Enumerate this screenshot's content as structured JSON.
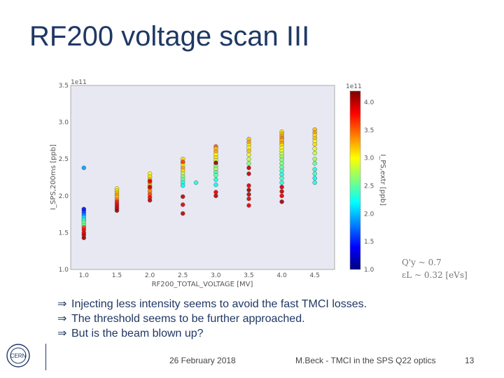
{
  "title": "RF200 voltage scan III",
  "colors": {
    "title": "#1f3864",
    "axes_bg": "#e8e8f2"
  },
  "side_notes": [
    "Q'y ~ 0.7",
    "εL ~ 0.32 [eVs]"
  ],
  "bullets": [
    "Injecting less intensity seems to avoid the fast TMCI losses.",
    "The threshold seems to be further approached.",
    "But is the beam blown up?"
  ],
  "bullet_icon": "implies-arrow-icon",
  "footer": {
    "date": "26 February 2018",
    "author": "M.Beck - TMCI in the SPS Q22 optics",
    "page": "13"
  },
  "logo": "cern-logo",
  "chart_data": {
    "type": "scatter",
    "title": "",
    "xlabel": "RF200_TOTAL_VOLTAGE [MV]",
    "ylabel": "I_SPS,200ms [ppb]",
    "offset_text": "1e11",
    "xlim": [
      0.8,
      4.8
    ],
    "ylim": [
      1.0,
      3.5
    ],
    "xticks": [
      "1.0",
      "1.5",
      "2.0",
      "2.5",
      "3.0",
      "3.5",
      "4.0",
      "4.5"
    ],
    "yticks": [
      "1.0",
      "1.5",
      "2.0",
      "2.5",
      "3.0",
      "3.5"
    ],
    "grid": false,
    "colorbar": {
      "label": "I_PS,extr [ppb]",
      "offset_text": "1e11",
      "range": [
        1.0,
        4.2
      ],
      "ticks": [
        "1.0",
        "1.5",
        "2.0",
        "2.5",
        "3.0",
        "3.5",
        "4.0"
      ],
      "colormap": "jet"
    },
    "points": [
      [
        1.0,
        1.82,
        1.4
      ],
      [
        1.0,
        1.8,
        1.5
      ],
      [
        1.0,
        1.77,
        1.6
      ],
      [
        1.0,
        1.74,
        1.8
      ],
      [
        1.0,
        1.71,
        2.1
      ],
      [
        1.0,
        1.68,
        2.3
      ],
      [
        1.0,
        1.66,
        2.4
      ],
      [
        1.0,
        1.63,
        2.6
      ],
      [
        1.0,
        1.6,
        2.5
      ],
      [
        1.0,
        1.57,
        3.6
      ],
      [
        1.0,
        1.54,
        3.8
      ],
      [
        1.0,
        1.5,
        3.9
      ],
      [
        1.0,
        1.47,
        4.0
      ],
      [
        1.0,
        1.43,
        4.1
      ],
      [
        1.0,
        2.38,
        1.9
      ],
      [
        1.5,
        2.1,
        3.0
      ],
      [
        1.5,
        2.07,
        3.1
      ],
      [
        1.5,
        2.04,
        3.2
      ],
      [
        1.5,
        2.01,
        3.3
      ],
      [
        1.5,
        1.98,
        3.2
      ],
      [
        1.5,
        1.95,
        3.4
      ],
      [
        1.5,
        1.92,
        3.7
      ],
      [
        1.5,
        1.89,
        3.8
      ],
      [
        1.5,
        1.86,
        3.9
      ],
      [
        1.5,
        1.83,
        4.0
      ],
      [
        1.5,
        1.8,
        4.1
      ],
      [
        2.0,
        2.3,
        3.0
      ],
      [
        2.0,
        2.26,
        3.1
      ],
      [
        2.0,
        2.22,
        3.2
      ],
      [
        2.0,
        2.18,
        3.3
      ],
      [
        2.0,
        2.14,
        3.2
      ],
      [
        2.0,
        2.1,
        3.3
      ],
      [
        2.0,
        2.06,
        3.4
      ],
      [
        2.0,
        2.02,
        3.6
      ],
      [
        2.0,
        1.98,
        3.8
      ],
      [
        2.0,
        1.94,
        4.0
      ],
      [
        2.0,
        2.2,
        3.9
      ],
      [
        2.0,
        2.12,
        4.0
      ],
      [
        2.5,
        2.5,
        3.1
      ],
      [
        2.5,
        2.46,
        3.2
      ],
      [
        2.5,
        2.42,
        3.0
      ],
      [
        2.5,
        2.38,
        3.3
      ],
      [
        2.5,
        2.34,
        3.1
      ],
      [
        2.5,
        2.3,
        2.8
      ],
      [
        2.5,
        2.26,
        2.6
      ],
      [
        2.5,
        2.22,
        2.5
      ],
      [
        2.5,
        2.18,
        2.3
      ],
      [
        2.5,
        2.14,
        2.2
      ],
      [
        2.5,
        1.99,
        4.0
      ],
      [
        2.5,
        1.88,
        3.9
      ],
      [
        2.5,
        1.76,
        4.0
      ],
      [
        2.5,
        2.46,
        3.6
      ],
      [
        2.7,
        2.18,
        2.3
      ],
      [
        3.0,
        2.67,
        3.5
      ],
      [
        3.0,
        2.64,
        3.2
      ],
      [
        3.0,
        2.6,
        3.3
      ],
      [
        3.0,
        2.56,
        3.0
      ],
      [
        3.0,
        2.52,
        3.1
      ],
      [
        3.0,
        2.48,
        2.9
      ],
      [
        3.0,
        2.44,
        2.7
      ],
      [
        3.0,
        2.4,
        2.6
      ],
      [
        3.0,
        2.36,
        2.8
      ],
      [
        3.0,
        2.32,
        2.4
      ],
      [
        3.0,
        2.28,
        2.5
      ],
      [
        3.0,
        2.22,
        2.3
      ],
      [
        3.0,
        2.15,
        2.2
      ],
      [
        3.0,
        2.05,
        3.9
      ],
      [
        3.0,
        2.0,
        4.0
      ],
      [
        3.0,
        2.45,
        4.1
      ],
      [
        3.5,
        2.77,
        3.2
      ],
      [
        3.5,
        2.73,
        3.3
      ],
      [
        3.5,
        2.69,
        3.1
      ],
      [
        3.5,
        2.65,
        3.0
      ],
      [
        3.5,
        2.61,
        3.2
      ],
      [
        3.5,
        2.56,
        2.9
      ],
      [
        3.5,
        2.5,
        2.8
      ],
      [
        3.5,
        2.44,
        2.6
      ],
      [
        3.5,
        2.38,
        4.0
      ],
      [
        3.5,
        2.3,
        4.0
      ],
      [
        3.5,
        2.14,
        3.9
      ],
      [
        3.5,
        2.08,
        4.1
      ],
      [
        3.5,
        2.02,
        4.0
      ],
      [
        3.5,
        1.96,
        3.9
      ],
      [
        3.5,
        1.87,
        3.9
      ],
      [
        4.0,
        2.87,
        3.1
      ],
      [
        4.0,
        2.84,
        3.2
      ],
      [
        4.0,
        2.81,
        3.3
      ],
      [
        4.0,
        2.78,
        3.4
      ],
      [
        4.0,
        2.75,
        3.2
      ],
      [
        4.0,
        2.72,
        3.3
      ],
      [
        4.0,
        2.69,
        3.1
      ],
      [
        4.0,
        2.65,
        3.0
      ],
      [
        4.0,
        2.61,
        2.9
      ],
      [
        4.0,
        2.57,
        2.8
      ],
      [
        4.0,
        2.53,
        2.7
      ],
      [
        4.0,
        2.49,
        2.6
      ],
      [
        4.0,
        2.44,
        2.6
      ],
      [
        4.0,
        2.39,
        2.5
      ],
      [
        4.0,
        2.34,
        2.4
      ],
      [
        4.0,
        2.29,
        2.3
      ],
      [
        4.0,
        2.24,
        2.4
      ],
      [
        4.0,
        2.18,
        2.3
      ],
      [
        4.0,
        2.12,
        4.0
      ],
      [
        4.0,
        2.06,
        4.0
      ],
      [
        4.0,
        2.0,
        3.9
      ],
      [
        4.0,
        1.92,
        4.1
      ],
      [
        4.5,
        2.9,
        3.2
      ],
      [
        4.5,
        2.86,
        3.3
      ],
      [
        4.5,
        2.82,
        3.1
      ],
      [
        4.5,
        2.78,
        3.2
      ],
      [
        4.5,
        2.74,
        3.0
      ],
      [
        4.5,
        2.7,
        3.1
      ],
      [
        4.5,
        2.64,
        2.9
      ],
      [
        4.5,
        2.58,
        2.8
      ],
      [
        4.5,
        2.5,
        2.7
      ],
      [
        4.5,
        2.44,
        2.5
      ],
      [
        4.5,
        2.36,
        2.3
      ],
      [
        4.5,
        2.3,
        2.4
      ],
      [
        4.5,
        2.24,
        2.2
      ],
      [
        4.5,
        2.18,
        2.3
      ]
    ]
  }
}
